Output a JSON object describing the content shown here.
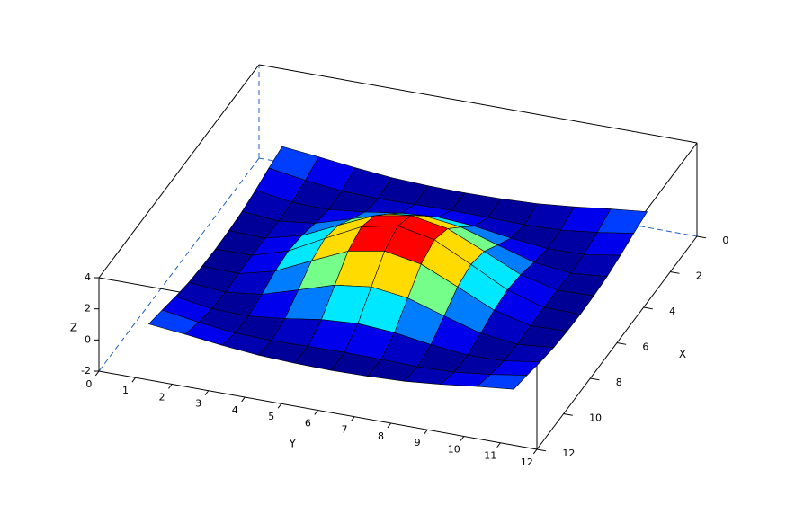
{
  "chart_data": {
    "type": "surface",
    "xlabel": "X",
    "ylabel": "Y",
    "zlabel": "Z",
    "x": [
      1,
      2,
      3,
      4,
      5,
      6,
      7,
      8,
      9,
      10,
      11
    ],
    "y": [
      1,
      2,
      3,
      4,
      5,
      6,
      7,
      8,
      9,
      10,
      11
    ],
    "z": [
      [
        0.3,
        0.06,
        -0.22,
        -0.44,
        -0.54,
        -0.58,
        -0.54,
        -0.44,
        -0.22,
        0.06,
        0.3
      ],
      [
        0.06,
        -0.31,
        -0.58,
        -0.65,
        -0.6,
        -0.57,
        -0.6,
        -0.65,
        -0.58,
        -0.31,
        0.06
      ],
      [
        -0.22,
        -0.58,
        -0.63,
        -0.37,
        -0.02,
        0.14,
        -0.02,
        -0.37,
        -0.63,
        -0.58,
        -0.22
      ],
      [
        -0.44,
        -0.65,
        -0.37,
        0.33,
        1.06,
        1.36,
        1.06,
        0.33,
        -0.37,
        -0.65,
        -0.44
      ],
      [
        -0.54,
        -0.6,
        -0.02,
        1.06,
        2.1,
        2.52,
        2.1,
        1.06,
        -0.02,
        -0.6,
        -0.54
      ],
      [
        -0.58,
        -0.57,
        0.14,
        1.36,
        2.52,
        3,
        2.52,
        1.36,
        0.14,
        -0.57,
        -0.58
      ],
      [
        -0.54,
        -0.6,
        -0.02,
        1.06,
        2.1,
        2.52,
        2.1,
        1.06,
        -0.02,
        -0.6,
        -0.54
      ],
      [
        -0.44,
        -0.65,
        -0.37,
        0.33,
        1.06,
        1.36,
        1.06,
        0.33,
        -0.37,
        -0.65,
        -0.44
      ],
      [
        -0.22,
        -0.58,
        -0.63,
        -0.37,
        -0.02,
        0.14,
        -0.02,
        -0.37,
        -0.63,
        -0.58,
        -0.22
      ],
      [
        0.06,
        -0.31,
        -0.58,
        -0.65,
        -0.6,
        -0.57,
        -0.6,
        -0.65,
        -0.58,
        -0.31,
        0.06
      ],
      [
        0.3,
        0.06,
        -0.22,
        -0.44,
        -0.54,
        -0.58,
        -0.54,
        -0.44,
        -0.22,
        0.06,
        0.3
      ]
    ],
    "xlim": [
      0,
      12
    ],
    "ylim": [
      0,
      12
    ],
    "zlim": [
      -2,
      4
    ],
    "xticks": [
      0,
      2,
      4,
      6,
      8,
      10,
      12
    ],
    "yticks": [
      0,
      1,
      2,
      3,
      4,
      5,
      6,
      7,
      8,
      9,
      10,
      11,
      12
    ],
    "zticks": [
      -2,
      0,
      2,
      4
    ],
    "colormap": "jet",
    "edge_color": "#000000",
    "box_color": "#000000",
    "hidden_box_color": "#1f5fbf"
  }
}
